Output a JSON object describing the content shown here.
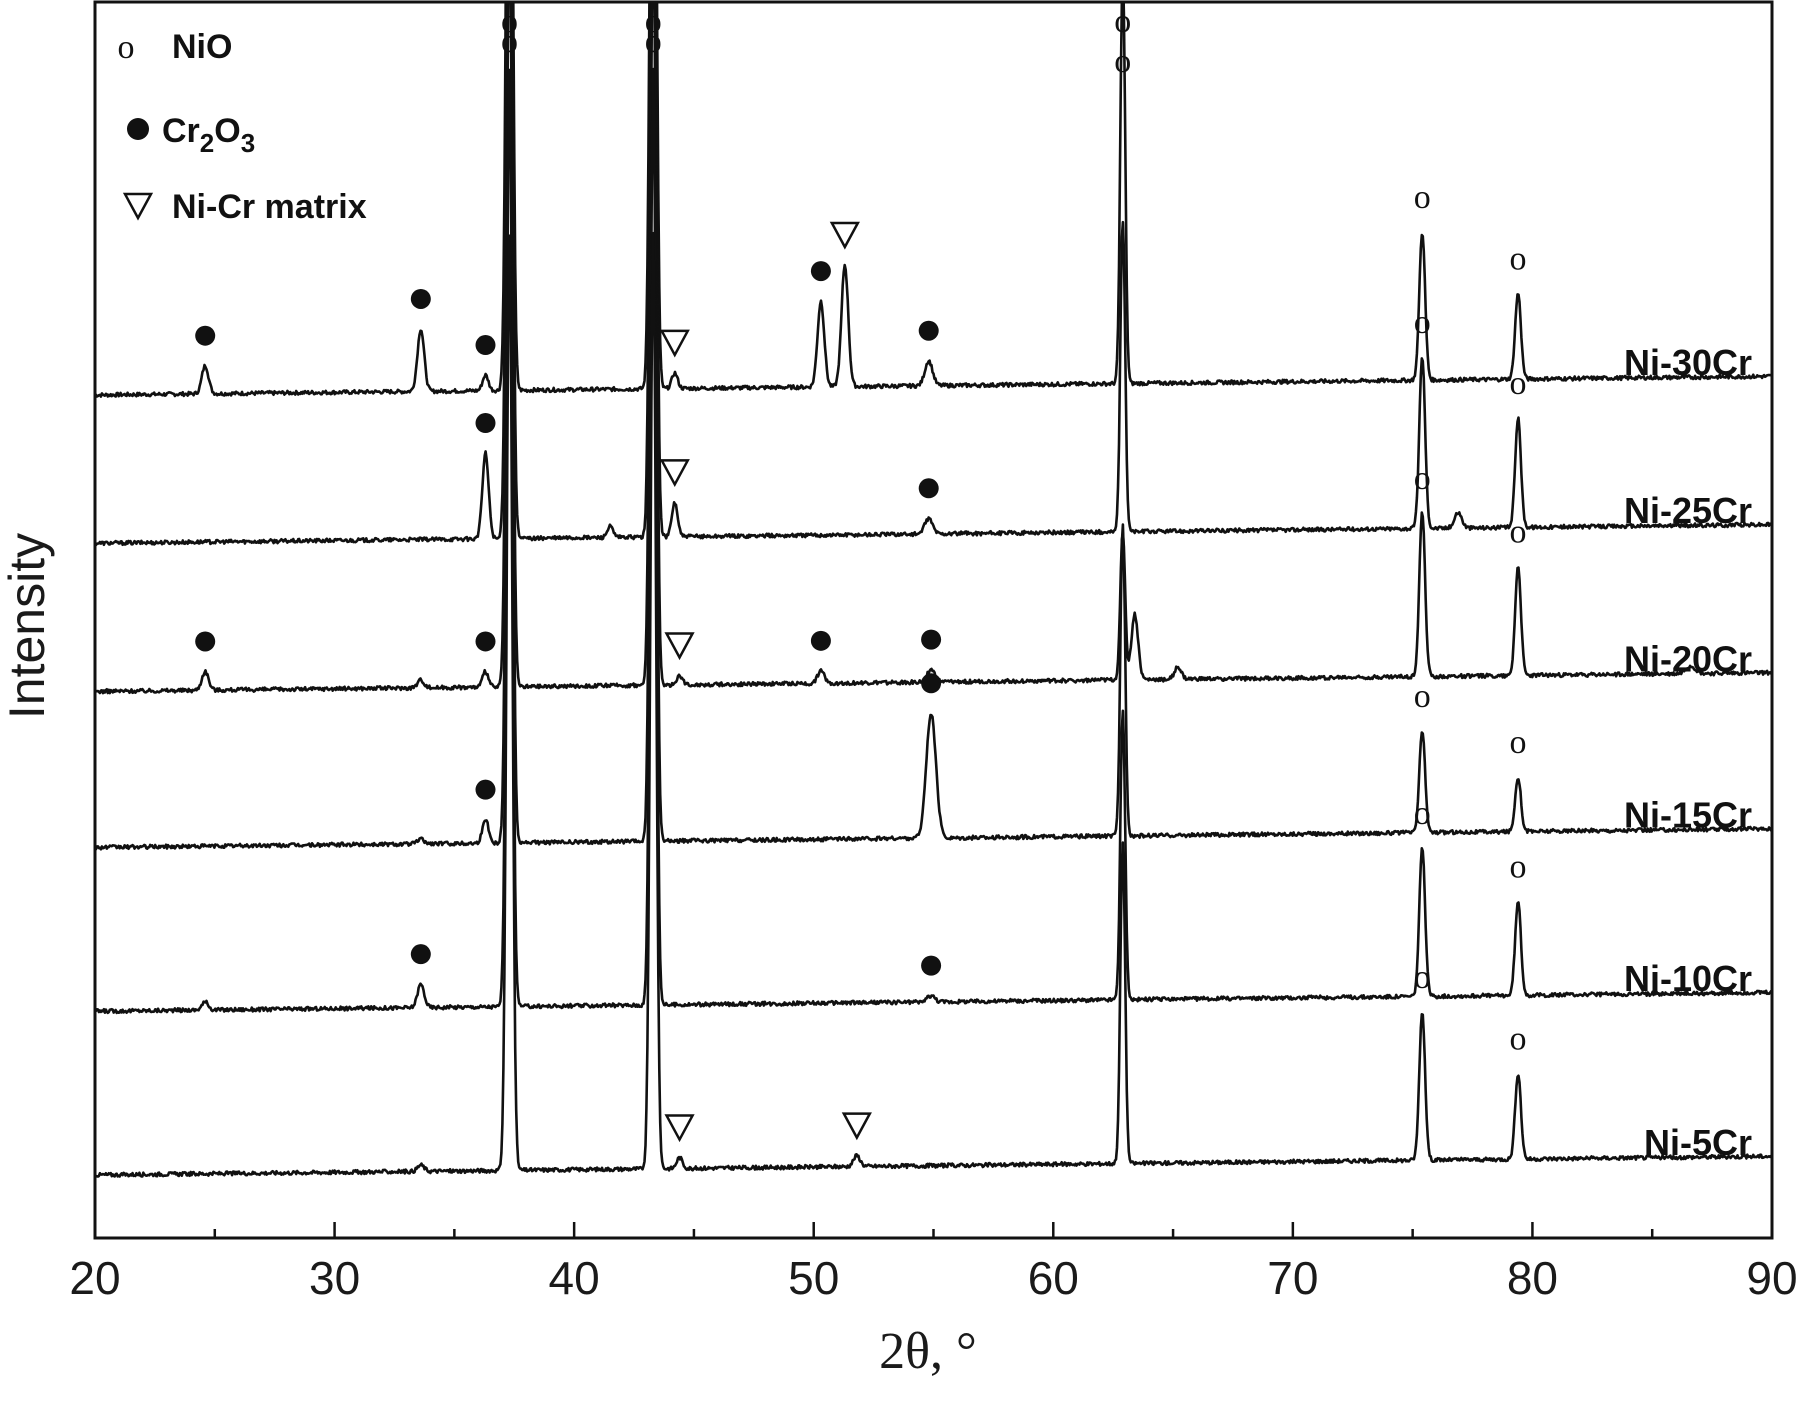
{
  "chart_data": {
    "type": "line",
    "xlabel": "2θ, °",
    "ylabel": "Intensity",
    "xlim": [
      20,
      90
    ],
    "x_ticks": [
      20,
      30,
      40,
      50,
      60,
      70,
      80,
      90
    ],
    "grid": false,
    "legend_position": "top-left",
    "legend": [
      {
        "symbol": "o",
        "label": "NiO"
      },
      {
        "symbol": "filled-circle",
        "label": "Cr2O3"
      },
      {
        "symbol": "open-triangle-down",
        "label": "Ni-Cr matrix"
      }
    ],
    "colors": {
      "line": "#111111",
      "axis": "#111111",
      "background": "#ffffff"
    },
    "series": [
      {
        "name": "Ni-30Cr",
        "baseline": 0.0,
        "peaks": [
          {
            "x": 24.6,
            "h": 0.18,
            "w": 0.14,
            "m": "cr2o3"
          },
          {
            "x": 33.6,
            "h": 0.4,
            "w": 0.14,
            "m": "cr2o3"
          },
          {
            "x": 36.3,
            "h": 0.1,
            "w": 0.12,
            "m": "cr2o3"
          },
          {
            "x": 37.3,
            "h": 6.0,
            "w": 0.12,
            "m": "nio"
          },
          {
            "x": 43.3,
            "h": 6.0,
            "w": 0.12,
            "m": "nio"
          },
          {
            "x": 44.2,
            "h": 0.1,
            "w": 0.12,
            "m": "matrix"
          },
          {
            "x": 50.3,
            "h": 0.55,
            "w": 0.14,
            "m": "cr2o3"
          },
          {
            "x": 51.3,
            "h": 0.78,
            "w": 0.14,
            "m": "matrix"
          },
          {
            "x": 54.8,
            "h": 0.16,
            "w": 0.16,
            "m": "cr2o3"
          },
          {
            "x": 62.9,
            "h": 2.65,
            "w": 0.1,
            "m": "nio"
          },
          {
            "x": 75.4,
            "h": 0.95,
            "w": 0.12,
            "m": "nio"
          },
          {
            "x": 79.4,
            "h": 0.55,
            "w": 0.12,
            "m": "nio"
          }
        ]
      },
      {
        "name": "Ni-25Cr",
        "baseline": -0.95,
        "peaks": [
          {
            "x": 36.3,
            "h": 0.55,
            "w": 0.13,
            "m": "cr2o3"
          },
          {
            "x": 37.3,
            "h": 6.0,
            "w": 0.12
          },
          {
            "x": 41.5,
            "h": 0.07,
            "w": 0.12
          },
          {
            "x": 43.3,
            "h": 6.0,
            "w": 0.12
          },
          {
            "x": 44.2,
            "h": 0.22,
            "w": 0.12,
            "m": "matrix"
          },
          {
            "x": 54.8,
            "h": 0.1,
            "w": 0.16,
            "m": "cr2o3"
          },
          {
            "x": 62.9,
            "h": 2.0,
            "w": 0.1
          },
          {
            "x": 75.4,
            "h": 1.1,
            "w": 0.12,
            "m": "nio"
          },
          {
            "x": 76.9,
            "h": 0.1,
            "w": 0.15
          },
          {
            "x": 79.4,
            "h": 0.7,
            "w": 0.12,
            "m": "nio"
          }
        ]
      },
      {
        "name": "Ni-20Cr",
        "baseline": -1.9,
        "peaks": [
          {
            "x": 24.6,
            "h": 0.12,
            "w": 0.14,
            "m": "cr2o3"
          },
          {
            "x": 33.6,
            "h": 0.05,
            "w": 0.14
          },
          {
            "x": 36.3,
            "h": 0.1,
            "w": 0.12,
            "m": "cr2o3"
          },
          {
            "x": 37.3,
            "h": 6.0,
            "w": 0.12
          },
          {
            "x": 43.3,
            "h": 6.0,
            "w": 0.12
          },
          {
            "x": 44.4,
            "h": 0.06,
            "w": 0.12,
            "m": "matrix"
          },
          {
            "x": 50.3,
            "h": 0.08,
            "w": 0.14,
            "m": "cr2o3"
          },
          {
            "x": 54.9,
            "h": 0.08,
            "w": 0.16,
            "m": "cr2o3"
          },
          {
            "x": 62.9,
            "h": 0.95,
            "w": 0.1
          },
          {
            "x": 63.4,
            "h": 0.42,
            "w": 0.14
          },
          {
            "x": 65.2,
            "h": 0.08,
            "w": 0.14
          },
          {
            "x": 75.4,
            "h": 1.05,
            "w": 0.12,
            "m": "nio"
          },
          {
            "x": 79.4,
            "h": 0.7,
            "w": 0.12,
            "m": "nio"
          },
          {
            "x": 86.6,
            "h": 0.05,
            "w": 0.2
          }
        ]
      },
      {
        "name": "Ni-15Cr",
        "baseline": -2.9,
        "peaks": [
          {
            "x": 33.6,
            "h": 0.03,
            "w": 0.14
          },
          {
            "x": 36.3,
            "h": 0.15,
            "w": 0.13,
            "m": "cr2o3"
          },
          {
            "x": 37.3,
            "h": 6.0,
            "w": 0.12
          },
          {
            "x": 43.3,
            "h": 6.0,
            "w": 0.12
          },
          {
            "x": 54.9,
            "h": 0.8,
            "w": 0.2,
            "m": "cr2o3"
          },
          {
            "x": 62.9,
            "h": 2.0,
            "w": 0.1
          },
          {
            "x": 75.4,
            "h": 0.65,
            "w": 0.12,
            "m": "nio"
          },
          {
            "x": 79.4,
            "h": 0.35,
            "w": 0.12,
            "m": "nio"
          }
        ]
      },
      {
        "name": "Ni-10Cr",
        "baseline": -3.95,
        "peaks": [
          {
            "x": 24.6,
            "h": 0.05,
            "w": 0.14
          },
          {
            "x": 33.6,
            "h": 0.15,
            "w": 0.14,
            "m": "cr2o3"
          },
          {
            "x": 37.3,
            "h": 6.0,
            "w": 0.12
          },
          {
            "x": 43.3,
            "h": 6.0,
            "w": 0.12
          },
          {
            "x": 54.9,
            "h": 0.04,
            "w": 0.16,
            "m": "cr2o3"
          },
          {
            "x": 62.9,
            "h": 1.85,
            "w": 0.1
          },
          {
            "x": 75.4,
            "h": 0.95,
            "w": 0.12,
            "m": "nio"
          },
          {
            "x": 79.4,
            "h": 0.6,
            "w": 0.12,
            "m": "nio"
          }
        ]
      },
      {
        "name": "Ni-5Cr",
        "baseline": -5.0,
        "peaks": [
          {
            "x": 33.6,
            "h": 0.04,
            "w": 0.14
          },
          {
            "x": 37.3,
            "h": 6.0,
            "w": 0.12
          },
          {
            "x": 43.3,
            "h": 6.0,
            "w": 0.12
          },
          {
            "x": 44.4,
            "h": 0.07,
            "w": 0.12,
            "m": "matrix"
          },
          {
            "x": 51.8,
            "h": 0.07,
            "w": 0.14,
            "m": "matrix"
          },
          {
            "x": 62.9,
            "h": 2.05,
            "w": 0.1
          },
          {
            "x": 75.4,
            "h": 0.95,
            "w": 0.12,
            "m": "nio"
          },
          {
            "x": 79.4,
            "h": 0.55,
            "w": 0.12,
            "m": "nio"
          }
        ]
      }
    ],
    "top_nio_markers": [
      {
        "x": 37.3,
        "big": true
      },
      {
        "x": 43.3,
        "big": true
      },
      {
        "x": 62.9,
        "big": false
      }
    ]
  }
}
